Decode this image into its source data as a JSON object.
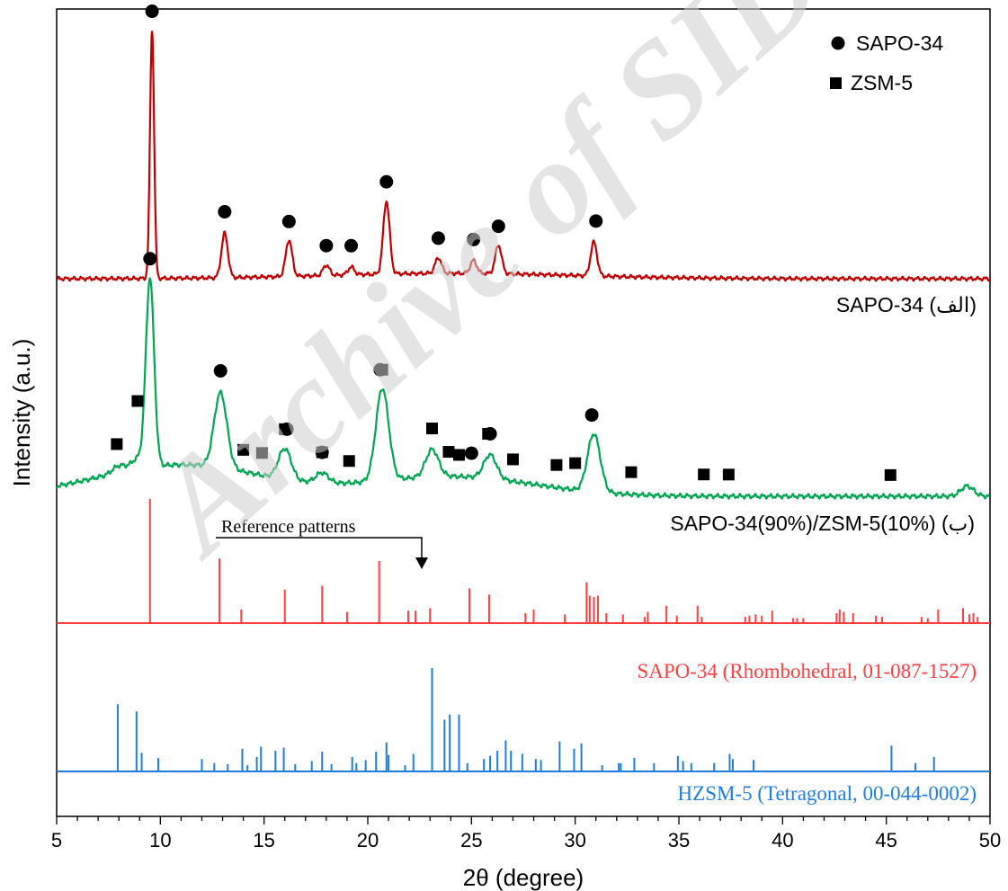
{
  "chart_data": {
    "type": "line",
    "xlabel": "2θ (degree)",
    "ylabel": "Intensity (a.u.)",
    "xlim": [
      5,
      50
    ],
    "xticks": [
      5,
      10,
      15,
      20,
      25,
      30,
      35,
      40,
      45,
      50
    ],
    "grid": false,
    "legend": {
      "placement": "top-right",
      "entries": [
        {
          "name": "SAPO-34",
          "marker": "circle"
        },
        {
          "name": "ZSM-5",
          "marker": "square"
        }
      ]
    },
    "series": [
      {
        "name": "SAPO-34 (الف)",
        "color": "#c00000",
        "peaks": [
          {
            "x": 9.6,
            "h": 0.95
          },
          {
            "x": 13.1,
            "h": 0.17
          },
          {
            "x": 16.2,
            "h": 0.14
          },
          {
            "x": 18.0,
            "h": 0.04
          },
          {
            "x": 19.2,
            "h": 0.03
          },
          {
            "x": 20.9,
            "h": 0.28
          },
          {
            "x": 23.4,
            "h": 0.06
          },
          {
            "x": 25.1,
            "h": 0.05
          },
          {
            "x": 26.3,
            "h": 0.11
          },
          {
            "x": 30.9,
            "h": 0.13
          }
        ],
        "markers": [
          {
            "x": 9.6,
            "shape": "circle"
          },
          {
            "x": 13.1,
            "shape": "circle"
          },
          {
            "x": 16.2,
            "shape": "circle"
          },
          {
            "x": 18.0,
            "shape": "circle"
          },
          {
            "x": 19.2,
            "shape": "circle"
          },
          {
            "x": 20.9,
            "shape": "circle"
          },
          {
            "x": 23.4,
            "shape": "circle"
          },
          {
            "x": 25.1,
            "shape": "circle"
          },
          {
            "x": 26.3,
            "shape": "circle"
          },
          {
            "x": 31.0,
            "shape": "circle"
          }
        ]
      },
      {
        "name": "SAPO-34(90%)/ZSM-5(10%) (ب)",
        "color": "#00a651",
        "peaks": [
          {
            "x": 8.0,
            "h": 0.02
          },
          {
            "x": 8.9,
            "h": 0.03
          },
          {
            "x": 9.5,
            "h": 0.55
          },
          {
            "x": 12.9,
            "h": 0.22
          },
          {
            "x": 16.0,
            "h": 0.09
          },
          {
            "x": 17.8,
            "h": 0.03
          },
          {
            "x": 20.7,
            "h": 0.27
          },
          {
            "x": 23.1,
            "h": 0.08
          },
          {
            "x": 25.9,
            "h": 0.07
          },
          {
            "x": 30.9,
            "h": 0.17
          },
          {
            "x": 48.9,
            "h": 0.03
          }
        ],
        "markers": [
          {
            "x": 9.5,
            "shape": "circle"
          },
          {
            "x": 12.9,
            "shape": "circle"
          },
          {
            "x": 16.1,
            "shape": "circle"
          },
          {
            "x": 17.8,
            "shape": "circle"
          },
          {
            "x": 20.6,
            "shape": "circle"
          },
          {
            "x": 25.0,
            "shape": "circle"
          },
          {
            "x": 25.9,
            "shape": "circle"
          },
          {
            "x": 30.8,
            "shape": "circle"
          },
          {
            "x": 7.9,
            "shape": "square"
          },
          {
            "x": 8.9,
            "shape": "square"
          },
          {
            "x": 14.0,
            "shape": "square"
          },
          {
            "x": 14.9,
            "shape": "square"
          },
          {
            "x": 16.0,
            "shape": "square"
          },
          {
            "x": 17.8,
            "shape": "square"
          },
          {
            "x": 19.1,
            "shape": "square"
          },
          {
            "x": 20.7,
            "shape": "square"
          },
          {
            "x": 23.1,
            "shape": "square"
          },
          {
            "x": 23.9,
            "shape": "square"
          },
          {
            "x": 24.4,
            "shape": "square"
          },
          {
            "x": 25.8,
            "shape": "square"
          },
          {
            "x": 27.0,
            "shape": "square"
          },
          {
            "x": 29.1,
            "shape": "square"
          },
          {
            "x": 30.0,
            "shape": "square"
          },
          {
            "x": 32.7,
            "shape": "square"
          },
          {
            "x": 36.2,
            "shape": "square"
          },
          {
            "x": 37.4,
            "shape": "square"
          },
          {
            "x": 45.2,
            "shape": "square"
          }
        ]
      }
    ],
    "reference_patterns": [
      {
        "name": "SAPO-34 (Rhombohedral, 01-087-1527)",
        "color": "#ff4040",
        "lines": [
          [
            9.5,
            1.0
          ],
          [
            12.85,
            0.52
          ],
          [
            13.9,
            0.11
          ],
          [
            16.0,
            0.27
          ],
          [
            17.8,
            0.3
          ],
          [
            19.0,
            0.09
          ],
          [
            20.55,
            0.5
          ],
          [
            21.95,
            0.1
          ],
          [
            22.3,
            0.1
          ],
          [
            23.0,
            0.12
          ],
          [
            24.9,
            0.28
          ],
          [
            25.85,
            0.23
          ],
          [
            27.6,
            0.08
          ],
          [
            28.0,
            0.11
          ],
          [
            29.5,
            0.07
          ],
          [
            30.55,
            0.33
          ],
          [
            30.7,
            0.22
          ],
          [
            30.9,
            0.21
          ],
          [
            31.1,
            0.22
          ],
          [
            31.5,
            0.08
          ],
          [
            32.3,
            0.07
          ],
          [
            33.35,
            0.05
          ],
          [
            33.5,
            0.09
          ],
          [
            34.4,
            0.14
          ],
          [
            34.9,
            0.06
          ],
          [
            35.9,
            0.14
          ],
          [
            36.1,
            0.05
          ],
          [
            38.2,
            0.05
          ],
          [
            38.4,
            0.06
          ],
          [
            38.7,
            0.07
          ],
          [
            39.0,
            0.06
          ],
          [
            39.5,
            0.1
          ],
          [
            40.5,
            0.04
          ],
          [
            40.7,
            0.04
          ],
          [
            41.0,
            0.04
          ],
          [
            42.6,
            0.08
          ],
          [
            42.75,
            0.11
          ],
          [
            42.95,
            0.09
          ],
          [
            43.4,
            0.08
          ],
          [
            44.5,
            0.06
          ],
          [
            44.8,
            0.05
          ],
          [
            46.7,
            0.05
          ],
          [
            47.0,
            0.04
          ],
          [
            47.5,
            0.11
          ],
          [
            48.7,
            0.12
          ],
          [
            49.0,
            0.07
          ],
          [
            49.2,
            0.08
          ],
          [
            49.4,
            0.05
          ]
        ]
      },
      {
        "name": "HZSM-5 (Tetragonal, 00-044-0002)",
        "color": "#1f7fe0",
        "lines": [
          [
            7.95,
            0.65
          ],
          [
            8.85,
            0.58
          ],
          [
            9.1,
            0.18
          ],
          [
            9.9,
            0.13
          ],
          [
            12.0,
            0.12
          ],
          [
            12.6,
            0.08
          ],
          [
            13.25,
            0.07
          ],
          [
            13.95,
            0.22
          ],
          [
            14.2,
            0.06
          ],
          [
            14.65,
            0.14
          ],
          [
            14.85,
            0.24
          ],
          [
            15.55,
            0.2
          ],
          [
            15.95,
            0.23
          ],
          [
            16.5,
            0.07
          ],
          [
            17.3,
            0.1
          ],
          [
            17.8,
            0.19
          ],
          [
            18.25,
            0.07
          ],
          [
            19.25,
            0.14
          ],
          [
            19.45,
            0.08
          ],
          [
            19.9,
            0.11
          ],
          [
            20.4,
            0.19
          ],
          [
            20.9,
            0.28
          ],
          [
            21.0,
            0.16
          ],
          [
            21.8,
            0.06
          ],
          [
            22.2,
            0.17
          ],
          [
            23.1,
            1.0
          ],
          [
            23.7,
            0.5
          ],
          [
            23.95,
            0.55
          ],
          [
            24.4,
            0.55
          ],
          [
            24.8,
            0.08
          ],
          [
            25.6,
            0.12
          ],
          [
            25.9,
            0.15
          ],
          [
            26.25,
            0.2
          ],
          [
            26.65,
            0.3
          ],
          [
            26.9,
            0.2
          ],
          [
            27.45,
            0.17
          ],
          [
            28.1,
            0.12
          ],
          [
            28.35,
            0.11
          ],
          [
            29.25,
            0.29
          ],
          [
            29.95,
            0.22
          ],
          [
            30.3,
            0.27
          ],
          [
            31.3,
            0.06
          ],
          [
            32.1,
            0.08
          ],
          [
            32.2,
            0.08
          ],
          [
            32.85,
            0.13
          ],
          [
            33.8,
            0.08
          ],
          [
            34.95,
            0.15
          ],
          [
            35.2,
            0.1
          ],
          [
            35.6,
            0.08
          ],
          [
            36.7,
            0.08
          ],
          [
            37.45,
            0.17
          ],
          [
            37.6,
            0.12
          ],
          [
            38.6,
            0.11
          ],
          [
            45.25,
            0.25
          ],
          [
            46.4,
            0.08
          ],
          [
            47.3,
            0.14
          ]
        ]
      }
    ],
    "annotations": [
      {
        "text": "Reference patterns",
        "arrow": "down"
      }
    ]
  },
  "watermark": "Archive of SID"
}
